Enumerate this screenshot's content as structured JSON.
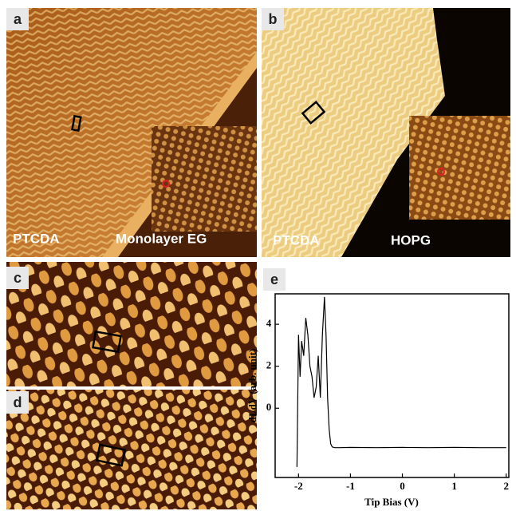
{
  "panels": [
    {
      "label": "a",
      "texts": [
        "PTCDA",
        "Monolayer EG"
      ]
    },
    {
      "label": "b",
      "texts": [
        "PTCDA",
        "HOPG"
      ]
    },
    {
      "label": "c"
    },
    {
      "label": "d"
    }
  ],
  "chart_data": {
    "type": "line",
    "label": "e",
    "x_label": "Tip Bias (V)",
    "y_label": "dI/dV (arb. unit)",
    "x": [
      -2.03,
      -2.0,
      -1.97,
      -1.94,
      -1.9,
      -1.86,
      -1.82,
      -1.78,
      -1.74,
      -1.7,
      -1.66,
      -1.62,
      -1.58,
      -1.54,
      -1.5,
      -1.47,
      -1.44,
      -1.41,
      -1.38,
      -1.35,
      -1.3,
      -1.2,
      -1.0,
      -0.5,
      0,
      0.5,
      1,
      1.5,
      2
    ],
    "series": [
      {
        "color": "#000000",
        "values": [
          -2.8,
          3.5,
          1.5,
          3.2,
          2.5,
          4.3,
          3.5,
          2.0,
          1.5,
          0.5,
          1.0,
          2.5,
          0.5,
          3.5,
          5.3,
          3.5,
          0.5,
          -1.0,
          -1.7,
          -1.85,
          -1.88,
          -1.88,
          -1.87,
          -1.88,
          -1.87,
          -1.88,
          -1.87,
          -1.88,
          -1.88
        ]
      }
    ],
    "xlim": [
      -2.45,
      2.05
    ],
    "ylim": [
      -3.3,
      5.45
    ],
    "xticks": [
      -2,
      -1,
      0,
      1,
      2
    ],
    "yticks": [
      0,
      2,
      4
    ]
  }
}
